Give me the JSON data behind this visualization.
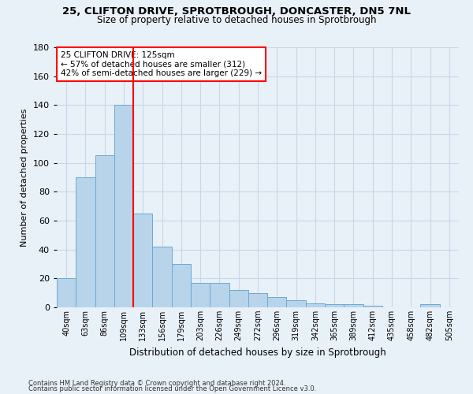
{
  "title_line1": "25, CLIFTON DRIVE, SPROTBROUGH, DONCASTER, DN5 7NL",
  "title_line2": "Size of property relative to detached houses in Sprotbrough",
  "xlabel": "Distribution of detached houses by size in Sprotbrough",
  "ylabel": "Number of detached properties",
  "categories": [
    "40sqm",
    "63sqm",
    "86sqm",
    "109sqm",
    "133sqm",
    "156sqm",
    "179sqm",
    "203sqm",
    "226sqm",
    "249sqm",
    "272sqm",
    "296sqm",
    "319sqm",
    "342sqm",
    "365sqm",
    "389sqm",
    "412sqm",
    "435sqm",
    "458sqm",
    "482sqm",
    "505sqm"
  ],
  "values": [
    20,
    90,
    105,
    140,
    65,
    42,
    30,
    17,
    17,
    12,
    10,
    7,
    5,
    3,
    2,
    2,
    1,
    0,
    0,
    2,
    0
  ],
  "bar_color": "#b8d4ea",
  "bar_edge_color": "#6aaad4",
  "grid_color": "#c8d8e8",
  "background_color": "#e8f0f8",
  "red_line_x": 4.0,
  "annotation_text_line1": "25 CLIFTON DRIVE: 125sqm",
  "annotation_text_line2": "← 57% of detached houses are smaller (312)",
  "annotation_text_line3": "42% of semi-detached houses are larger (229) →",
  "annotation_box_color": "white",
  "annotation_box_edge": "red",
  "ylim": [
    0,
    180
  ],
  "yticks": [
    0,
    20,
    40,
    60,
    80,
    100,
    120,
    140,
    160,
    180
  ],
  "footer_line1": "Contains HM Land Registry data © Crown copyright and database right 2024.",
  "footer_line2": "Contains public sector information licensed under the Open Government Licence v3.0."
}
